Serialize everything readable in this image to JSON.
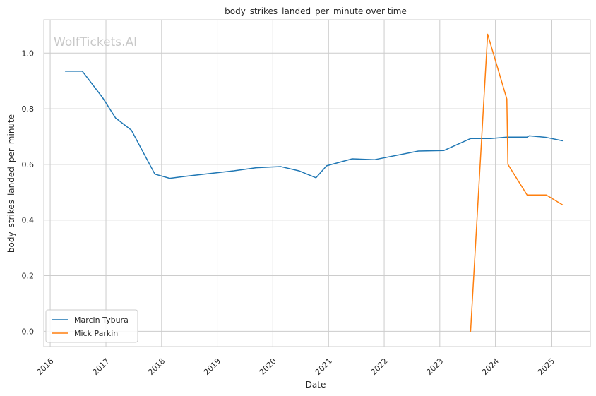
{
  "chart_data": {
    "type": "line",
    "title": "body_strikes_landed_per_minute over time",
    "xlabel": "Date",
    "ylabel": "body_strikes_landed_per_minute",
    "watermark": "WolfTickets.AI",
    "x_ticks": [
      "2016",
      "2017",
      "2018",
      "2019",
      "2020",
      "2021",
      "2022",
      "2023",
      "2024",
      "2025"
    ],
    "y_ticks": [
      "0.0",
      "0.2",
      "0.4",
      "0.6",
      "0.8",
      "1.0"
    ],
    "xlim": [
      "2015-11-20",
      "2025-09-15"
    ],
    "ylim": [
      -0.055,
      1.12
    ],
    "grid": true,
    "legend_position": "lower-left",
    "series": [
      {
        "name": "Marcin Tybura",
        "color": "#1f77b4",
        "points": [
          [
            "2016-04-10",
            0.935
          ],
          [
            "2016-07-30",
            0.935
          ],
          [
            "2016-12-10",
            0.84
          ],
          [
            "2017-03-05",
            0.767
          ],
          [
            "2017-06-17",
            0.723
          ],
          [
            "2017-11-18",
            0.565
          ],
          [
            "2018-02-24",
            0.55
          ],
          [
            "2018-07-22",
            0.56
          ],
          [
            "2019-04-20",
            0.577
          ],
          [
            "2019-09-14",
            0.588
          ],
          [
            "2020-02-23",
            0.592
          ],
          [
            "2020-06-20",
            0.577
          ],
          [
            "2020-10-10",
            0.552
          ],
          [
            "2020-12-19",
            0.595
          ],
          [
            "2021-06-05",
            0.62
          ],
          [
            "2021-10-30",
            0.617
          ],
          [
            "2022-08-13",
            0.648
          ],
          [
            "2023-01-28",
            0.65
          ],
          [
            "2023-07-22",
            0.693
          ],
          [
            "2023-12-02",
            0.693
          ],
          [
            "2024-03-16",
            0.698
          ],
          [
            "2024-07-27",
            0.698
          ],
          [
            "2024-08-10",
            0.703
          ],
          [
            "2024-11-30",
            0.697
          ],
          [
            "2025-03-15",
            0.685
          ]
        ]
      },
      {
        "name": "Mick Parkin",
        "color": "#ff7f0e",
        "points": [
          [
            "2023-07-22",
            0.0
          ],
          [
            "2023-11-11",
            1.068
          ],
          [
            "2024-03-16",
            0.835
          ],
          [
            "2024-03-23",
            0.6
          ],
          [
            "2024-07-27",
            0.49
          ],
          [
            "2024-11-30",
            0.49
          ],
          [
            "2025-03-15",
            0.455
          ]
        ]
      }
    ]
  }
}
